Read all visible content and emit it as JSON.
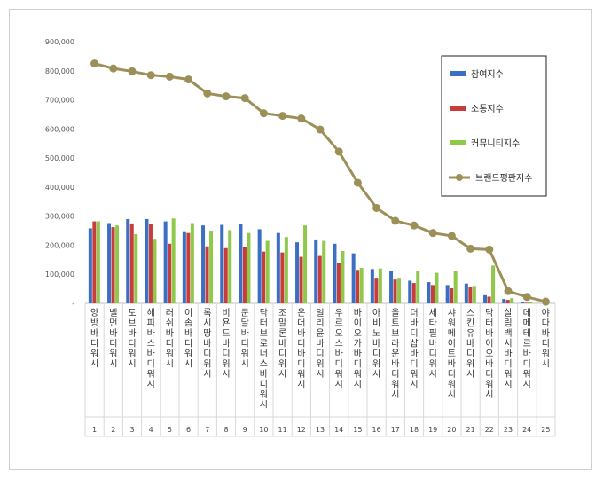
{
  "chart_data": {
    "type": "bar",
    "title": "",
    "xlabel": "",
    "ylabel": "",
    "ylim": [
      0,
      900000
    ],
    "yticks": [
      "-",
      "100,000",
      "200,000",
      "300,000",
      "400,000",
      "500,000",
      "600,000",
      "700,000",
      "800,000",
      "900,000"
    ],
    "grid": false,
    "legend_position": "top-right",
    "categories": [
      "양방바디워시",
      "벨먼바디워시",
      "도브바디워시",
      "해피바스바디워시",
      "러쉬바디워시",
      "이솝바디워시",
      "록시땅바디워시",
      "비욘드바디워시",
      "쿤달바디워시",
      "닥터브로너스바디워시",
      "조말론바디워시",
      "온더바디바디워시",
      "일리윤바디워시",
      "우르오스바디워시",
      "바이오가바디워시",
      "아비노바디워시",
      "올트브라운바디워시",
      "더바디샵바디워시",
      "세타필바디워시",
      "샤워메이트바디워시",
      "스킨유바디워시",
      "닥터바이오바디워시",
      "살림백서바디워시",
      "데메테르바디워시",
      "야다바디워시"
    ],
    "index_labels": [
      "1",
      "2",
      "3",
      "4",
      "5",
      "6",
      "7",
      "8",
      "9",
      "10",
      "11",
      "12",
      "13",
      "14",
      "15",
      "16",
      "17",
      "18",
      "19",
      "20",
      "21",
      "22",
      "23",
      "24",
      "25"
    ],
    "series": [
      {
        "name": "참여지수",
        "kind": "bar",
        "color": "#3a6fc4",
        "values": [
          258000,
          276000,
          290000,
          290000,
          282000,
          248000,
          268000,
          270000,
          272000,
          255000,
          242000,
          210000,
          220000,
          205000,
          172000,
          118000,
          112000,
          78000,
          73000,
          63000,
          68000,
          28000,
          15000,
          3000,
          0
        ]
      },
      {
        "name": "소통지수",
        "kind": "bar",
        "color": "#c83c3c",
        "values": [
          282000,
          262000,
          275000,
          272000,
          205000,
          242000,
          196000,
          190000,
          195000,
          178000,
          175000,
          160000,
          163000,
          138000,
          115000,
          88000,
          82000,
          70000,
          63000,
          52000,
          56000,
          23000,
          12000,
          2000,
          0
        ]
      },
      {
        "name": "커뮤니티지수",
        "kind": "bar",
        "color": "#8ec94a",
        "values": [
          282000,
          268000,
          238000,
          222000,
          292000,
          276000,
          250000,
          252000,
          242000,
          215000,
          228000,
          268000,
          215000,
          180000,
          122000,
          120000,
          88000,
          112000,
          105000,
          112000,
          60000,
          130000,
          18000,
          3000,
          0
        ]
      },
      {
        "name": "브랜드평판지수",
        "kind": "line",
        "color": "#9c8f57",
        "values": [
          825000,
          808000,
          798000,
          785000,
          780000,
          770000,
          722000,
          712000,
          706000,
          654000,
          645000,
          636000,
          598000,
          522000,
          415000,
          328000,
          284000,
          268000,
          242000,
          232000,
          188000,
          185000,
          42000,
          22000,
          6000
        ]
      }
    ]
  }
}
